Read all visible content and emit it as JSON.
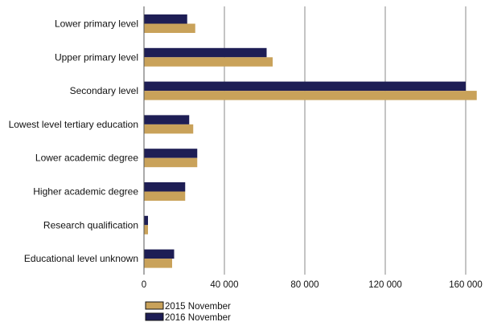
{
  "chart_data": {
    "type": "bar",
    "orientation": "horizontal",
    "categories": [
      "Lower primary level",
      "Upper primary level",
      "Secondary level",
      "Lowest level tertiary education",
      "Lower academic degree",
      "Higher academic degree",
      "Research qualification",
      "Educational level unknown"
    ],
    "series": [
      {
        "name": "2016 November",
        "color": "#1e1e55",
        "values": [
          21500,
          61000,
          160000,
          22500,
          26500,
          20500,
          2000,
          15000
        ]
      },
      {
        "name": "2015 November",
        "color": "#c9a25a",
        "values": [
          25500,
          64000,
          165500,
          24500,
          26500,
          20500,
          2000,
          14000
        ]
      }
    ],
    "xlim": [
      0,
      166000
    ],
    "ticks": [
      0,
      40000,
      80000,
      120000,
      160000
    ],
    "tick_labels": [
      "0",
      "40 000",
      "80 000",
      "120 000",
      "160 000"
    ],
    "grid": "vertical",
    "legend_position": "bottom-left",
    "legend": [
      {
        "label": "2015 November",
        "color": "#c9a25a"
      },
      {
        "label": "2016 November",
        "color": "#1e1e55"
      }
    ]
  }
}
